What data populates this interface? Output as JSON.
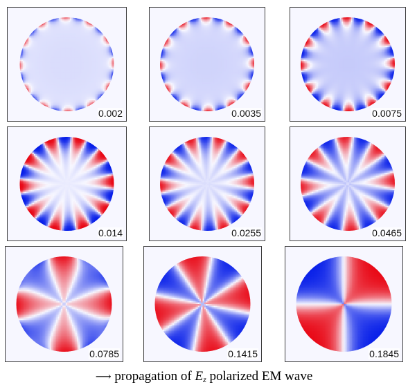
{
  "colors": {
    "positive": "#e8000e",
    "negative": "#0018e8",
    "background_tint": "#f7f7ff",
    "frame_border": "#3c3c3c"
  },
  "snapshots": [
    {
      "label": "0.002",
      "fields": [
        {
          "amp": 0.12,
          "dx": 0,
          "dy": 0,
          "gain": 1
        },
        {
          "nAng": 12,
          "phase": 0.3,
          "amp": 0.95,
          "depth": 0.045,
          "gain": 1
        }
      ]
    },
    {
      "label": "0.0035",
      "fields": [
        {
          "amp": 0.16,
          "dx": 0,
          "dy": 0,
          "gain": 1
        },
        {
          "nAng": 12,
          "phase": 0.3,
          "amp": 1,
          "depth": 0.06,
          "gain": 1.4
        }
      ]
    },
    {
      "label": "0.0075",
      "fields": [
        {
          "amp": 0.2,
          "dx": 0,
          "dy": 0,
          "gain": 1
        },
        {
          "nAng": 12,
          "phase": 0.3,
          "amp": 1,
          "depth": 0.09,
          "gain": 2
        }
      ]
    },
    {
      "label": "0.014",
      "fields": [
        {
          "amp": 0.05,
          "dx": 0,
          "dy": 0,
          "gain": 1
        },
        {
          "nAng": 10,
          "phase": 0.5,
          "amp": 1,
          "depth": 0.16,
          "gain": 2.5
        }
      ]
    },
    {
      "label": "0.0255",
      "fields": [
        {
          "amp": 0.1,
          "dx": 0,
          "dy": 0,
          "gain": 1
        },
        {
          "nAng": 10,
          "phase": 0.5,
          "amp": 0.85,
          "depth": 0.2,
          "gain": 2
        }
      ]
    },
    {
      "label": "0.0465",
      "fields": [
        {
          "amp": 0.18,
          "dx": -0.3,
          "dy": 0,
          "gain": 1
        },
        {
          "nAng": 8,
          "phase": 0.6,
          "amp": 0.8,
          "depth": 0.28,
          "gain": 2
        }
      ]
    },
    {
      "label": "0.0785",
      "fields": [
        {
          "nAng": 4,
          "phase": 0.0,
          "amp": 1,
          "depth": 0.5,
          "gain": 1.2
        },
        {
          "nAng": 8,
          "phase": 0.4,
          "amp": 0.25,
          "depth": 0.12,
          "gain": 2
        }
      ]
    },
    {
      "label": "0.1415",
      "fields": [
        {
          "nAng": 4,
          "phase": 0.8,
          "amp": 1,
          "depth": 0.7,
          "gain": 1.6
        }
      ]
    },
    {
      "label": "0.1845",
      "fields": [
        {
          "nAng": 2,
          "phase": 1.5708,
          "amp": 1,
          "depth": 0.8,
          "gain": 2
        }
      ]
    }
  ],
  "caption": {
    "arrow": "⟶",
    "prefix": " propagation of ",
    "symbol": "E",
    "subscript": "z",
    "suffix": " polarized EM wave"
  }
}
